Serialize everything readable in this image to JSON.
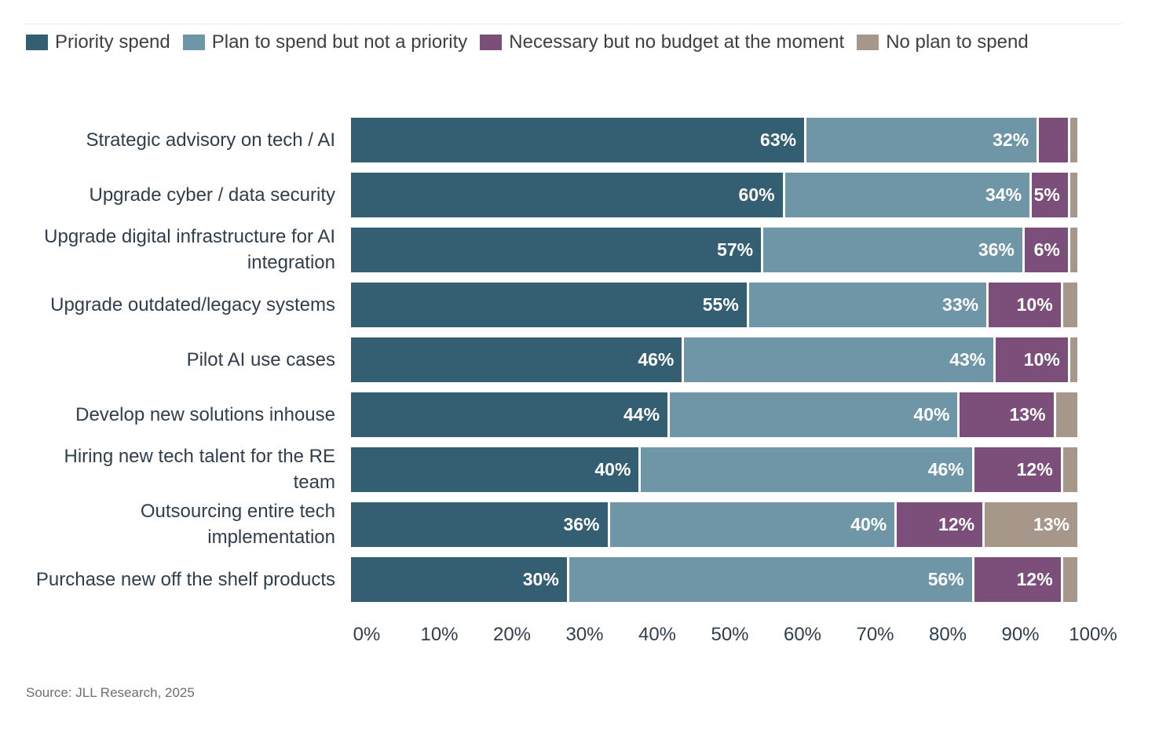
{
  "legend": {
    "items": [
      {
        "label": "Priority spend",
        "color": "#345E71"
      },
      {
        "label": "Plan to spend but not a priority",
        "color": "#6F96A6"
      },
      {
        "label": "Necessary but no budget at the moment",
        "color": "#7B4F79"
      },
      {
        "label": "No plan to spend",
        "color": "#A7978B"
      }
    ]
  },
  "chart_data": {
    "type": "bar",
    "orientation": "horizontal",
    "stacked": true,
    "categories": [
      "Strategic advisory on tech / AI",
      "Upgrade cyber / data security",
      "Upgrade digital infrastructure for AI integration",
      "Upgrade outdated/legacy systems",
      "Pilot AI use cases",
      "Develop new solutions inhouse",
      "Hiring new tech talent for the RE team",
      "Outsourcing entire tech implementation",
      "Purchase new off the shelf products"
    ],
    "series": [
      {
        "name": "Priority spend",
        "color": "#345E71",
        "values": [
          63,
          60,
          57,
          55,
          46,
          44,
          40,
          36,
          30
        ]
      },
      {
        "name": "Plan to spend but not a priority",
        "color": "#6F96A6",
        "values": [
          32,
          34,
          36,
          33,
          43,
          40,
          46,
          40,
          56
        ]
      },
      {
        "name": "Necessary but no budget at the moment",
        "color": "#7B4F79",
        "values": [
          4,
          5,
          6,
          10,
          10,
          13,
          12,
          12,
          12
        ]
      },
      {
        "name": "No plan to spend",
        "color": "#A7978B",
        "values": [
          1,
          1,
          1,
          2,
          1,
          3,
          2,
          13,
          2
        ]
      }
    ],
    "x_ticks": [
      "0%",
      "10%",
      "20%",
      "30%",
      "40%",
      "50%",
      "60%",
      "70%",
      "80%",
      "90%",
      "100%"
    ],
    "xlim": [
      0,
      100
    ],
    "value_suffix": "%",
    "data_label_min_value": 5,
    "legend_position": "top-left",
    "grid": false
  },
  "source": "Source: JLL Research, 2025"
}
